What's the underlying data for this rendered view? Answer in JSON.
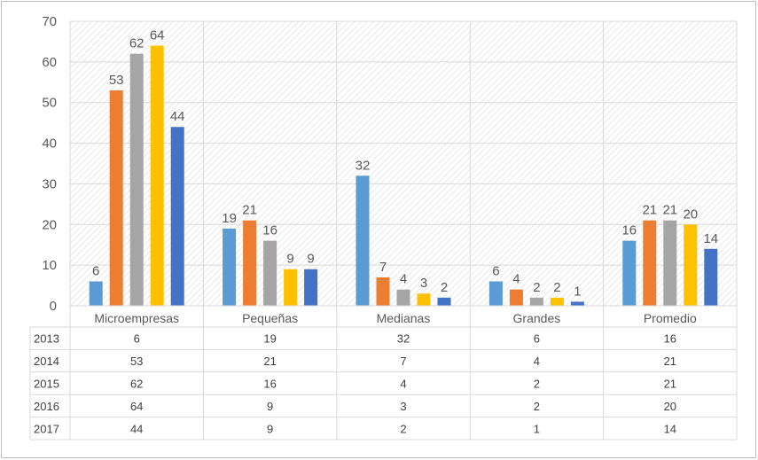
{
  "chart_data": {
    "type": "bar",
    "categories": [
      "Microempresas",
      "Pequeñas",
      "Medianas",
      "Grandes",
      "Promedio"
    ],
    "series": [
      {
        "name": "2013",
        "values": [
          6,
          19,
          32,
          6,
          16
        ],
        "color": "#5b9bd5"
      },
      {
        "name": "2014",
        "values": [
          53,
          21,
          7,
          4,
          21
        ],
        "color": "#ed7d31"
      },
      {
        "name": "2015",
        "values": [
          62,
          16,
          4,
          2,
          21
        ],
        "color": "#a5a5a5"
      },
      {
        "name": "2016",
        "values": [
          64,
          9,
          3,
          2,
          20
        ],
        "color": "#ffc000"
      },
      {
        "name": "2017",
        "values": [
          44,
          9,
          2,
          1,
          14
        ],
        "color": "#4472c4"
      }
    ],
    "y_ticks": [
      "0",
      "10",
      "20",
      "30",
      "40",
      "50",
      "60",
      "70"
    ],
    "ylim": [
      0,
      70
    ],
    "grid": true,
    "plot_pattern": "diagonal-hatch",
    "data_table": true,
    "title": "",
    "xlabel": "",
    "ylabel": ""
  }
}
